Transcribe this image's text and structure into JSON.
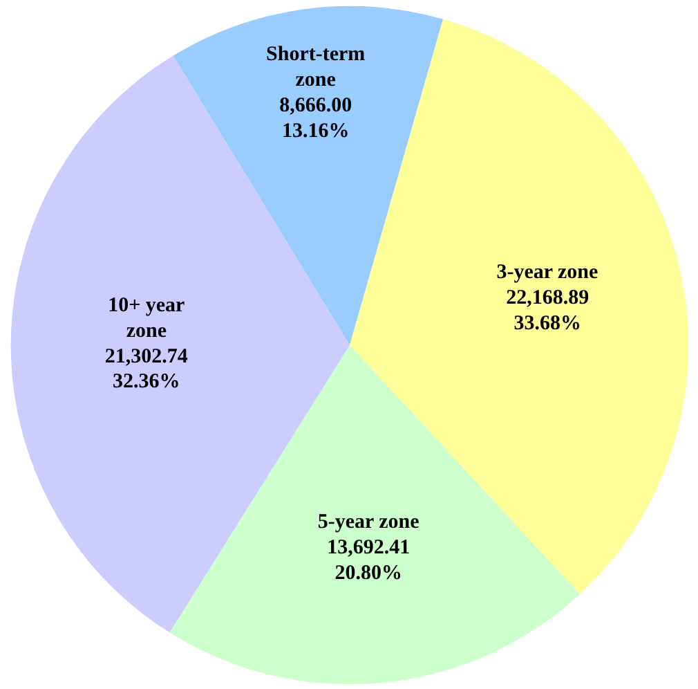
{
  "chart_data": {
    "type": "pie",
    "categories": [
      "Short-term zone",
      "3-year zone",
      "5-year zone",
      "10+ year zone"
    ],
    "values": [
      8666.0,
      22168.89,
      13692.41,
      21302.74
    ],
    "colors": [
      "#99ccff",
      "#ffff99",
      "#ccffcc",
      "#ccccff"
    ],
    "value_labels": [
      "8,666.00\n13.16%",
      "22,168.89\n33.68%",
      "13,692.41\n20.80%",
      "21,302.74\n32.36%"
    ]
  }
}
